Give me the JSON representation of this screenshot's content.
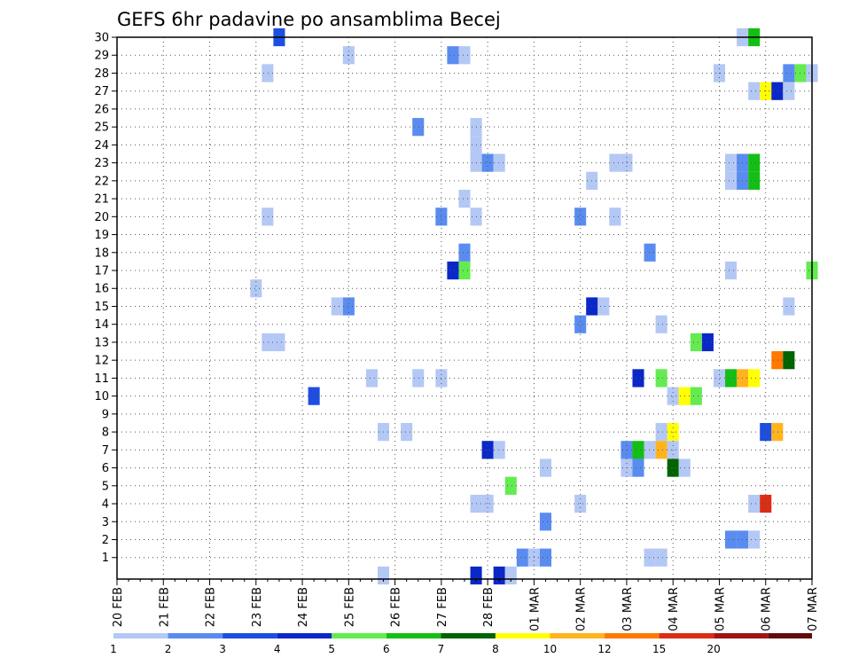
{
  "chart_data": {
    "type": "heatmap",
    "title": "GEFS 6hr padavine po ansamblima Becej",
    "ylim": [
      0,
      30
    ],
    "xlim": [
      0,
      60
    ],
    "y_ticks": [
      "1",
      "2",
      "3",
      "4",
      "5",
      "6",
      "7",
      "8",
      "9",
      "10",
      "11",
      "12",
      "13",
      "14",
      "15",
      "16",
      "17",
      "18",
      "19",
      "20",
      "21",
      "22",
      "23",
      "24",
      "25",
      "26",
      "27",
      "28",
      "29",
      "30"
    ],
    "x_tick_labels": [
      "20 FEB",
      "21 FEB",
      "22 FEB",
      "23 FEB",
      "24 FEB",
      "25 FEB",
      "26 FEB",
      "27 FEB",
      "28 FEB",
      "01 MAR",
      "02 MAR",
      "03 MAR",
      "04 MAR",
      "05 MAR",
      "06 MAR",
      "07 MAR"
    ],
    "grid": true,
    "colorbar": {
      "labels": [
        "1",
        "2",
        "3",
        "4",
        "5",
        "6",
        "7",
        "8",
        "10",
        "12",
        "15",
        "20"
      ],
      "colors": [
        "#b4c8f5",
        "#5a8cf0",
        "#1e4ee0",
        "#0a28c8",
        "#64eb50",
        "#14be14",
        "#006400",
        "#ffff00",
        "#ffb41e",
        "#ff7800",
        "#dc2d14",
        "#a01414",
        "#640a0a"
      ]
    },
    "cells": [
      {
        "t": 14,
        "m": 30,
        "c": 3
      },
      {
        "t": 54,
        "m": 30,
        "c": 1
      },
      {
        "t": 55,
        "m": 30,
        "c": 6
      },
      {
        "t": 20,
        "m": 29,
        "c": 1
      },
      {
        "t": 29,
        "m": 29,
        "c": 2
      },
      {
        "t": 30,
        "m": 29,
        "c": 1
      },
      {
        "t": 13,
        "m": 28,
        "c": 1
      },
      {
        "t": 52,
        "m": 28,
        "c": 1
      },
      {
        "t": 58,
        "m": 28,
        "c": 2
      },
      {
        "t": 59,
        "m": 28,
        "c": 5
      },
      {
        "t": 60,
        "m": 28,
        "c": 1
      },
      {
        "t": 55,
        "m": 27,
        "c": 1
      },
      {
        "t": 56,
        "m": 27,
        "c": 8
      },
      {
        "t": 57,
        "m": 27,
        "c": 4
      },
      {
        "t": 58,
        "m": 27,
        "c": 1
      },
      {
        "t": 26,
        "m": 25,
        "c": 2
      },
      {
        "t": 31,
        "m": 25,
        "c": 1
      },
      {
        "t": 31,
        "m": 24,
        "c": 1
      },
      {
        "t": 31,
        "m": 23,
        "c": 1
      },
      {
        "t": 32,
        "m": 23,
        "c": 2
      },
      {
        "t": 33,
        "m": 23,
        "c": 1
      },
      {
        "t": 43,
        "m": 23,
        "c": 1
      },
      {
        "t": 44,
        "m": 23,
        "c": 1
      },
      {
        "t": 53,
        "m": 23,
        "c": 1
      },
      {
        "t": 54,
        "m": 23,
        "c": 2
      },
      {
        "t": 55,
        "m": 23,
        "c": 6
      },
      {
        "t": 41,
        "m": 22,
        "c": 1
      },
      {
        "t": 53,
        "m": 22,
        "c": 1
      },
      {
        "t": 54,
        "m": 22,
        "c": 2
      },
      {
        "t": 55,
        "m": 22,
        "c": 6
      },
      {
        "t": 30,
        "m": 21,
        "c": 1
      },
      {
        "t": 13,
        "m": 20,
        "c": 1
      },
      {
        "t": 28,
        "m": 20,
        "c": 2
      },
      {
        "t": 31,
        "m": 20,
        "c": 1
      },
      {
        "t": 40,
        "m": 20,
        "c": 2
      },
      {
        "t": 43,
        "m": 20,
        "c": 1
      },
      {
        "t": 30,
        "m": 18,
        "c": 2
      },
      {
        "t": 46,
        "m": 18,
        "c": 2
      },
      {
        "t": 29,
        "m": 17,
        "c": 4
      },
      {
        "t": 30,
        "m": 17,
        "c": 5
      },
      {
        "t": 53,
        "m": 17,
        "c": 1
      },
      {
        "t": 60,
        "m": 17,
        "c": 5
      },
      {
        "t": 12,
        "m": 16,
        "c": 1
      },
      {
        "t": 19,
        "m": 15,
        "c": 1
      },
      {
        "t": 20,
        "m": 15,
        "c": 2
      },
      {
        "t": 41,
        "m": 15,
        "c": 4
      },
      {
        "t": 42,
        "m": 15,
        "c": 1
      },
      {
        "t": 58,
        "m": 15,
        "c": 1
      },
      {
        "t": 40,
        "m": 14,
        "c": 2
      },
      {
        "t": 47,
        "m": 14,
        "c": 1
      },
      {
        "t": 13,
        "m": 13,
        "c": 1
      },
      {
        "t": 14,
        "m": 13,
        "c": 1
      },
      {
        "t": 50,
        "m": 13,
        "c": 5
      },
      {
        "t": 51,
        "m": 13,
        "c": 4
      },
      {
        "t": 57,
        "m": 12,
        "c": 10
      },
      {
        "t": 58,
        "m": 12,
        "c": 7
      },
      {
        "t": 22,
        "m": 11,
        "c": 1
      },
      {
        "t": 26,
        "m": 11,
        "c": 1
      },
      {
        "t": 28,
        "m": 11,
        "c": 1
      },
      {
        "t": 45,
        "m": 11,
        "c": 4
      },
      {
        "t": 47,
        "m": 11,
        "c": 5
      },
      {
        "t": 52,
        "m": 11,
        "c": 1
      },
      {
        "t": 53,
        "m": 11,
        "c": 6
      },
      {
        "t": 54,
        "m": 11,
        "c": 9
      },
      {
        "t": 55,
        "m": 11,
        "c": 8
      },
      {
        "t": 17,
        "m": 10,
        "c": 3
      },
      {
        "t": 48,
        "m": 10,
        "c": 1
      },
      {
        "t": 49,
        "m": 10,
        "c": 8
      },
      {
        "t": 50,
        "m": 10,
        "c": 5
      },
      {
        "t": 23,
        "m": 8,
        "c": 1
      },
      {
        "t": 25,
        "m": 8,
        "c": 1
      },
      {
        "t": 47,
        "m": 8,
        "c": 1
      },
      {
        "t": 48,
        "m": 8,
        "c": 8
      },
      {
        "t": 56,
        "m": 8,
        "c": 3
      },
      {
        "t": 57,
        "m": 8,
        "c": 9
      },
      {
        "t": 32,
        "m": 7,
        "c": 4
      },
      {
        "t": 33,
        "m": 7,
        "c": 1
      },
      {
        "t": 44,
        "m": 7,
        "c": 2
      },
      {
        "t": 45,
        "m": 7,
        "c": 6
      },
      {
        "t": 46,
        "m": 7,
        "c": 1
      },
      {
        "t": 47,
        "m": 7,
        "c": 9
      },
      {
        "t": 48,
        "m": 7,
        "c": 1
      },
      {
        "t": 37,
        "m": 6,
        "c": 1
      },
      {
        "t": 44,
        "m": 6,
        "c": 1
      },
      {
        "t": 45,
        "m": 6,
        "c": 2
      },
      {
        "t": 48,
        "m": 6,
        "c": 7
      },
      {
        "t": 49,
        "m": 6,
        "c": 1
      },
      {
        "t": 34,
        "m": 5,
        "c": 5
      },
      {
        "t": 31,
        "m": 4,
        "c": 1
      },
      {
        "t": 32,
        "m": 4,
        "c": 1
      },
      {
        "t": 40,
        "m": 4,
        "c": 1
      },
      {
        "t": 55,
        "m": 4,
        "c": 1
      },
      {
        "t": 56,
        "m": 4,
        "c": 11
      },
      {
        "t": 37,
        "m": 3,
        "c": 2
      },
      {
        "t": 53,
        "m": 2,
        "c": 2
      },
      {
        "t": 54,
        "m": 2,
        "c": 2
      },
      {
        "t": 55,
        "m": 2,
        "c": 1
      },
      {
        "t": 35,
        "m": 1,
        "c": 2
      },
      {
        "t": 36,
        "m": 1,
        "c": 1
      },
      {
        "t": 37,
        "m": 1,
        "c": 2
      },
      {
        "t": 46,
        "m": 1,
        "c": 1
      },
      {
        "t": 47,
        "m": 1,
        "c": 1
      },
      {
        "t": 23,
        "m": 0,
        "c": 1
      },
      {
        "t": 31,
        "m": 0,
        "c": 4
      },
      {
        "t": 33,
        "m": 0,
        "c": 4
      },
      {
        "t": 34,
        "m": 0,
        "c": 1
      }
    ]
  }
}
